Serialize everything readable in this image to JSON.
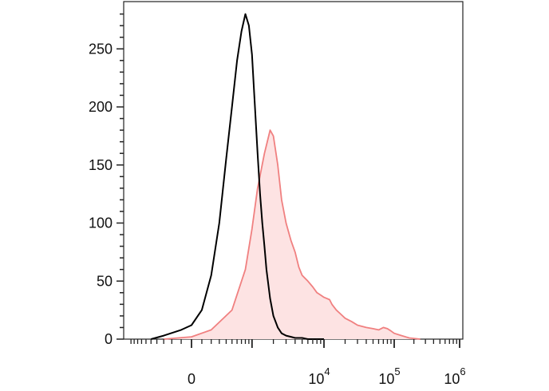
{
  "chart_data": {
    "type": "area",
    "title": "",
    "xlabel": "",
    "ylabel": "",
    "ylim": [
      0,
      290
    ],
    "x_scale": "biexponential",
    "y_ticks": [
      0,
      50,
      100,
      150,
      200,
      250
    ],
    "y_tick_labels": [
      "0",
      "50",
      "100",
      "150",
      "200",
      "250"
    ],
    "x_tick_labels": [
      {
        "value": 0,
        "base": "0",
        "exp": ""
      },
      {
        "value": 10000,
        "base": "10",
        "exp": "4"
      },
      {
        "value": 100000,
        "base": "10",
        "exp": "5"
      },
      {
        "value": 1000000,
        "base": "10",
        "exp": "6"
      }
    ],
    "grid": false,
    "legend": "none",
    "series": [
      {
        "style": "filled",
        "color": "#f08080",
        "fill": "#fde3e3",
        "x": [
          -300,
          0,
          200,
          500,
          800,
          1000,
          1200,
          1500,
          1800,
          2000,
          2300,
          2600,
          3000,
          3500,
          4000,
          4500,
          5000,
          6000,
          7000,
          8000,
          9000,
          10000,
          11000,
          12000,
          13000,
          15000,
          17000,
          20000,
          25000,
          30000,
          40000,
          50000,
          60000,
          70000,
          80000,
          90000,
          100000,
          130000,
          170000,
          250000
        ],
        "y": [
          0,
          2,
          8,
          25,
          60,
          95,
          130,
          160,
          180,
          175,
          150,
          120,
          100,
          85,
          75,
          62,
          55,
          50,
          45,
          40,
          38,
          36,
          35,
          34,
          30,
          25,
          22,
          18,
          15,
          12,
          10,
          9,
          8,
          10,
          9,
          7,
          5,
          3,
          1,
          0
        ]
      },
      {
        "style": "line",
        "color": "#000000",
        "x": [
          -500,
          -300,
          -100,
          0,
          100,
          200,
          300,
          400,
          500,
          600,
          700,
          800,
          900,
          1000,
          1100,
          1200,
          1300,
          1400,
          1500,
          1600,
          1800,
          2000,
          2300,
          2600,
          3000,
          3500,
          4000,
          5000,
          6000,
          8000,
          10000
        ],
        "y": [
          0,
          3,
          8,
          12,
          25,
          55,
          100,
          155,
          200,
          240,
          265,
          280,
          270,
          245,
          200,
          160,
          125,
          100,
          80,
          60,
          35,
          20,
          10,
          5,
          3,
          2,
          1,
          1,
          0,
          0,
          0
        ]
      }
    ]
  }
}
